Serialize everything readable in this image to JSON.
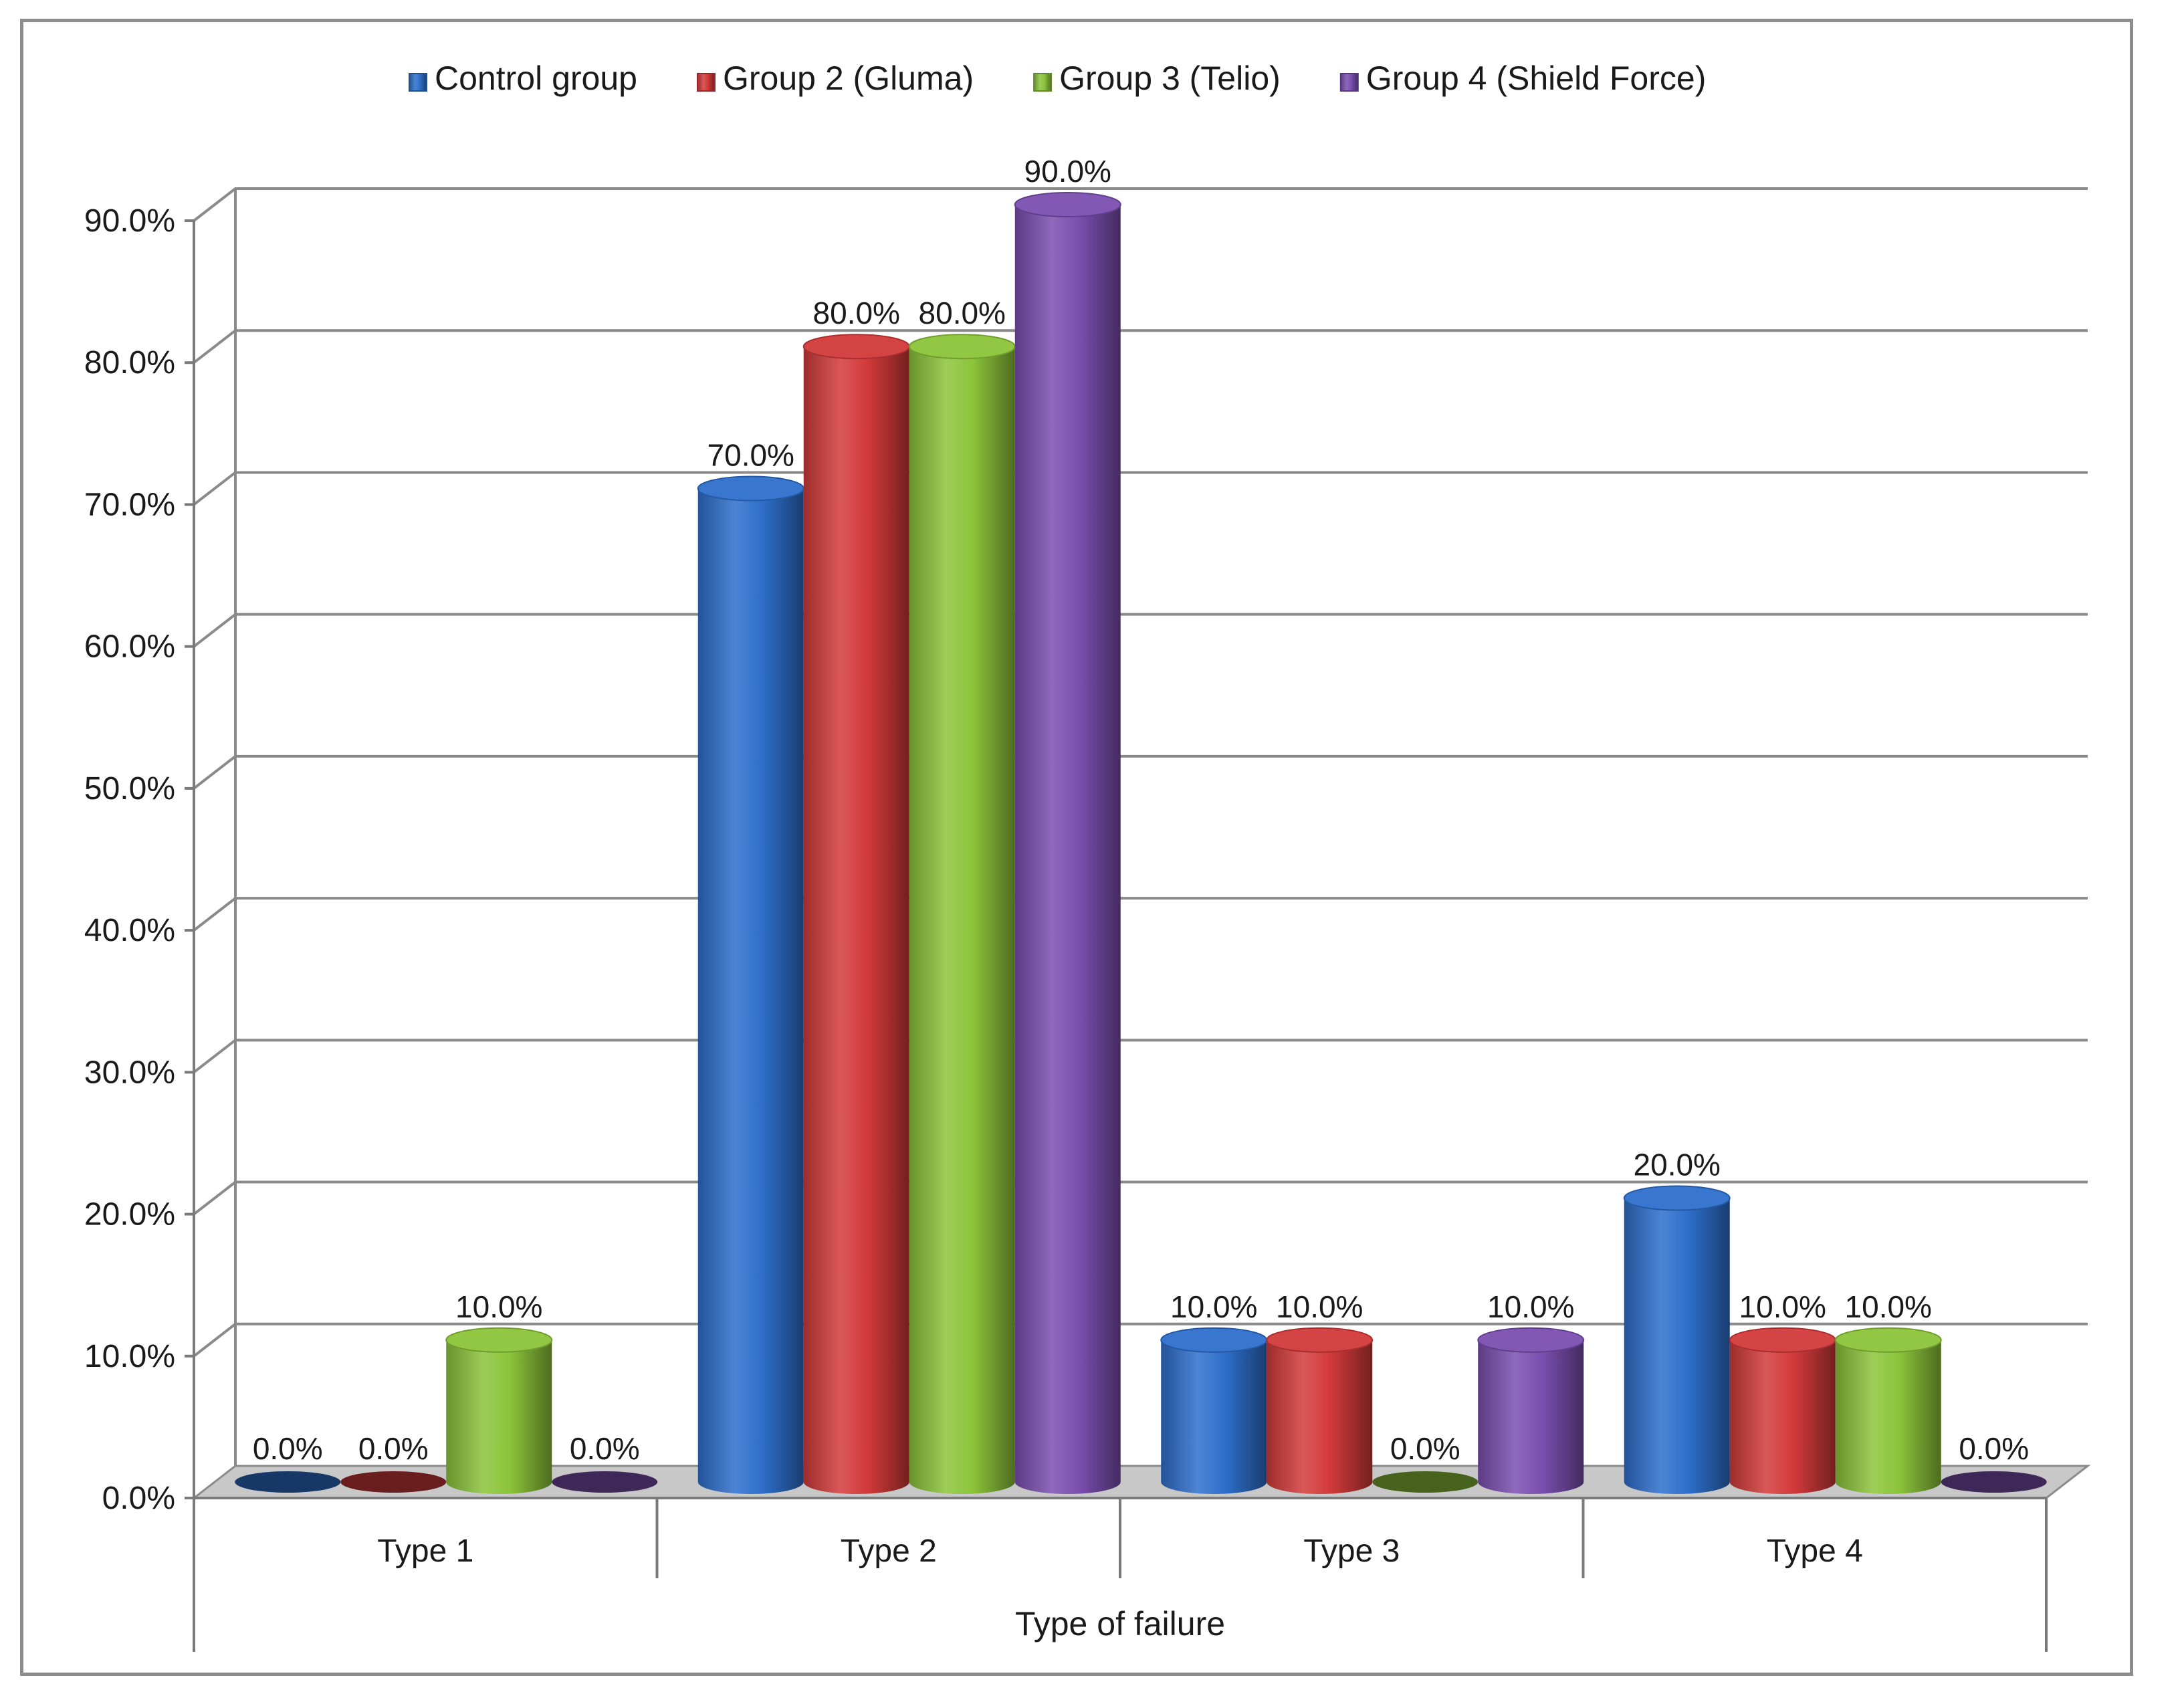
{
  "chart_data": {
    "type": "bar",
    "categories": [
      "Type 1",
      "Type 2",
      "Type 3",
      "Type 4"
    ],
    "series": [
      {
        "name": "Control group",
        "values": [
          0.0,
          70.0,
          10.0,
          20.0
        ],
        "color": "#2e6fcc"
      },
      {
        "name": "Group 2 (Gluma)",
        "values": [
          0.0,
          80.0,
          10.0,
          10.0
        ],
        "color": "#d33a3a"
      },
      {
        "name": "Group 3 (Telio)",
        "values": [
          10.0,
          80.0,
          0.0,
          10.0
        ],
        "color": "#8cc43a"
      },
      {
        "name": "Group 4 (Shield Force)",
        "values": [
          0.0,
          90.0,
          10.0,
          0.0
        ],
        "color": "#7b4fb0"
      }
    ],
    "xlabel": "Type of failure",
    "ylabel": "",
    "ylim": [
      0,
      90
    ],
    "yticks": [
      "0.0%",
      "10.0%",
      "20.0%",
      "30.0%",
      "40.0%",
      "50.0%",
      "60.0%",
      "70.0%",
      "80.0%",
      "90.0%"
    ],
    "value_format": "percent-1-decimal",
    "legend_position": "top",
    "grid": true,
    "style": "3d-cylinder"
  }
}
